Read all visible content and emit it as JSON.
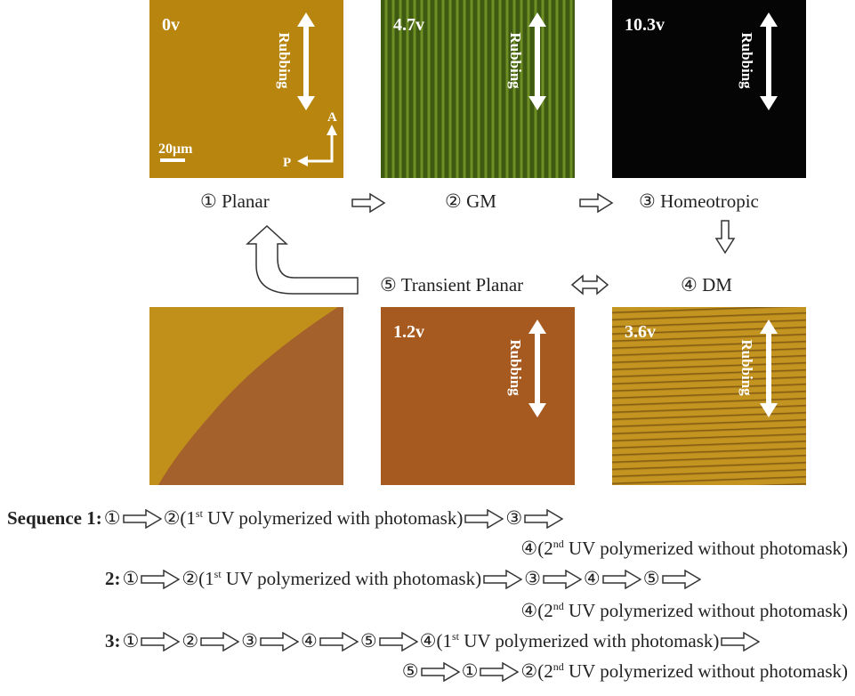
{
  "panels": [
    {
      "voltage": "0v",
      "rubbing": "Rubbing"
    },
    {
      "voltage": "4.7v",
      "rubbing": "Rubbing"
    },
    {
      "voltage": "10.3v",
      "rubbing": "Rubbing"
    },
    {
      "voltage": "1.2v",
      "rubbing": "Rubbing"
    },
    {
      "voltage": "3.6v",
      "rubbing": "Rubbing"
    }
  ],
  "scale_bar": "20μm",
  "analyzer": "A",
  "polarizer": "P",
  "states": [
    "① Planar",
    "② GM",
    "③ Homeotropic",
    "④ DM",
    "⑤ Transient Planar"
  ],
  "sequences": [
    {
      "label": "Sequence 1:",
      "lines": [
        {
          "steps": [
            "①",
            {
              "text": "②(1",
              "sup": "st",
              "tail": " UV polymerized with photomask)"
            },
            "③"
          ],
          "continues": true
        },
        {
          "steps": [
            {
              "text": "④(2",
              "sup": "nd",
              "tail": " UV polymerized without photomask)"
            }
          ]
        }
      ]
    },
    {
      "label": "2:",
      "lines": [
        {
          "steps": [
            "①",
            {
              "text": "②(1",
              "sup": "st",
              "tail": " UV polymerized with photomask)"
            },
            "③",
            "④",
            "⑤"
          ],
          "continues": true
        },
        {
          "steps": [
            {
              "text": "④(2",
              "sup": "nd",
              "tail": " UV polymerized without photomask)"
            }
          ]
        }
      ]
    },
    {
      "label": "3:",
      "lines": [
        {
          "steps": [
            "①",
            "②",
            "③",
            "④",
            "⑤",
            {
              "text": "④(1",
              "sup": "st",
              "tail": " UV polymerized with photomask)"
            }
          ],
          "continues": true
        },
        {
          "steps": [
            "⑤",
            "①",
            {
              "text": "②(2",
              "sup": "nd",
              "tail": " UV polymerized without photomask)"
            }
          ]
        }
      ]
    }
  ]
}
